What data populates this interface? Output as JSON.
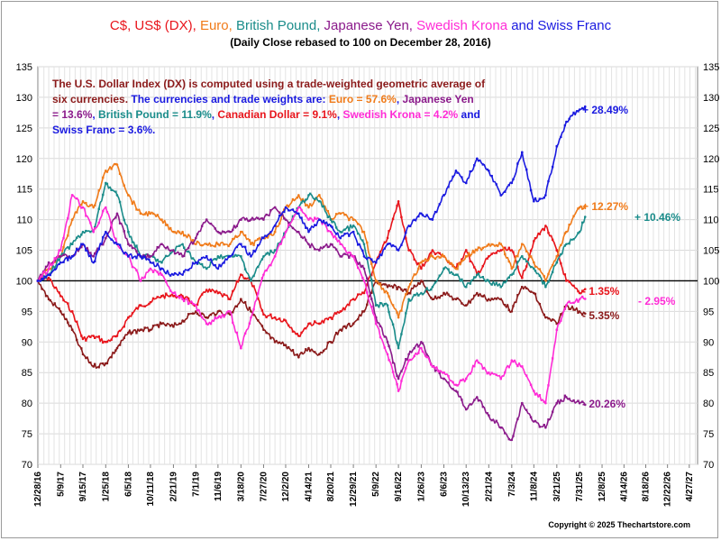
{
  "title": {
    "segments": [
      {
        "text": "C$",
        "color": "#e8141b"
      },
      {
        "text": ", ",
        "color": "#e8141b"
      },
      {
        "text": "US$ (DX)",
        "color": "#e8141b"
      },
      {
        "text": ", ",
        "color": "#e8141b"
      },
      {
        "text": "Euro",
        "color": "#f07b1a"
      },
      {
        "text": ", ",
        "color": "#f07b1a"
      },
      {
        "text": "British Pound",
        "color": "#1a8c8a"
      },
      {
        "text": ", ",
        "color": "#1a8c8a"
      },
      {
        "text": "Japanese Yen",
        "color": "#8b1a8b"
      },
      {
        "text": ", ",
        "color": "#8b1a8b"
      },
      {
        "text": "Swedish Krona",
        "color": "#ff2bd6"
      },
      {
        "text": " and ",
        "color": "#1a1ae0"
      },
      {
        "text": "Swiss Franc",
        "color": "#1a1ae0"
      }
    ],
    "subtitle": "(Daily Close rebased to 100 on December 28, 2016)"
  },
  "annotation": {
    "lines": [
      [
        {
          "text": "The U.S. Dollar Index (DX) is computed using a trade-weighted geometric average of",
          "color": "#8b1a1a"
        }
      ],
      [
        {
          "text": "six currencies.",
          "color": "#8b1a1a"
        },
        {
          "text": "  The currencies and  trade weights are: ",
          "color": "#1a1ae0"
        },
        {
          "text": "Euro = 57.6%",
          "color": "#f07b1a"
        },
        {
          "text": ", ",
          "color": "#1a1ae0"
        },
        {
          "text": "Japanese Yen",
          "color": "#8b1a8b"
        }
      ],
      [
        {
          "text": "= 13.6%",
          "color": "#8b1a8b"
        },
        {
          "text": ",  ",
          "color": "#1a1ae0"
        },
        {
          "text": "British Pound = 11.9%",
          "color": "#1a8c8a"
        },
        {
          "text": ", ",
          "color": "#1a1ae0"
        },
        {
          "text": "Canadian Dollar = 9.1%",
          "color": "#e8141b"
        },
        {
          "text": ", ",
          "color": "#1a1ae0"
        },
        {
          "text": "Swedish Krona = 4.2%",
          "color": "#ff2bd6"
        },
        {
          "text": " and",
          "color": "#1a1ae0"
        }
      ],
      [
        {
          "text": "Swiss Franc = 3.6%.",
          "color": "#1a1ae0"
        }
      ]
    ]
  },
  "copyright": "Copyright © 2025 Thechartstore.com",
  "chart_data": {
    "type": "line",
    "ylim": [
      70,
      135
    ],
    "y_ticks": [
      70,
      75,
      80,
      85,
      90,
      95,
      100,
      105,
      110,
      115,
      120,
      125,
      130,
      135
    ],
    "reference_line": 100,
    "grid": true,
    "x_range": [
      "2016-12-28",
      "2027-06-14"
    ],
    "x_tick_labels": [
      "12/28/16",
      "5/9/17",
      "9/15/17",
      "1/25/18",
      "6/5/18",
      "10/11/18",
      "2/21/19",
      "7/1/19",
      "11/6/19",
      "3/18/20",
      "7/27/20",
      "12/2/20",
      "4/14/21",
      "8/20/21",
      "12/29/21",
      "5/9/22",
      "9/16/22",
      "1/26/23",
      "6/6/23",
      "10/13/23",
      "2/21/24",
      "7/3/24",
      "11/8/24",
      "3/21/25",
      "7/31/25",
      "12/8/25",
      "4/14/26",
      "8/18/26",
      "12/22/26",
      "4/27/27"
    ],
    "series": [
      {
        "name": "US$ (DX)",
        "color": "#e8141b",
        "end_label": "- 1.35%",
        "dates": [
          "2016-12-28",
          "2017-03-01",
          "2017-05-09",
          "2017-07-15",
          "2017-09-15",
          "2017-11-15",
          "2018-01-25",
          "2018-04-01",
          "2018-06-05",
          "2018-08-15",
          "2018-10-11",
          "2018-12-15",
          "2019-02-21",
          "2019-04-15",
          "2019-07-01",
          "2019-09-01",
          "2019-11-06",
          "2020-01-15",
          "2020-03-18",
          "2020-05-15",
          "2020-07-27",
          "2020-10-01",
          "2020-12-02",
          "2021-02-15",
          "2021-04-14",
          "2021-06-15",
          "2021-08-20",
          "2021-10-15",
          "2021-12-29",
          "2022-03-01",
          "2022-05-09",
          "2022-07-15",
          "2022-09-16",
          "2022-11-15",
          "2023-01-26",
          "2023-04-01",
          "2023-06-06",
          "2023-08-15",
          "2023-10-13",
          "2023-12-15",
          "2024-02-21",
          "2024-05-01",
          "2024-07-03",
          "2024-09-01",
          "2024-11-08",
          "2025-01-15",
          "2025-03-21",
          "2025-05-15",
          "2025-07-31",
          "2025-09-01"
        ],
        "values": [
          100,
          100.5,
          97.5,
          95,
          90.5,
          91,
          90,
          91,
          94,
          96,
          96.5,
          97.5,
          97.5,
          97.5,
          96,
          98.5,
          98,
          97,
          101,
          100,
          94.5,
          94,
          93.5,
          91,
          93,
          93,
          94,
          95,
          97,
          98,
          103,
          107,
          113,
          105,
          102,
          105,
          104,
          102,
          105,
          101,
          104,
          105,
          105,
          100.5,
          106.5,
          109,
          105,
          100,
          98,
          98.65
        ]
      },
      {
        "name": "C$",
        "color": "#8b1a1a",
        "end_label": "- 5.35%",
        "dates": [
          "2016-12-28",
          "2017-03-01",
          "2017-05-09",
          "2017-07-15",
          "2017-09-15",
          "2017-11-15",
          "2018-01-25",
          "2018-04-01",
          "2018-06-05",
          "2018-08-15",
          "2018-10-11",
          "2018-12-15",
          "2019-02-21",
          "2019-04-15",
          "2019-07-01",
          "2019-09-01",
          "2019-11-06",
          "2020-01-15",
          "2020-03-18",
          "2020-05-15",
          "2020-07-27",
          "2020-10-01",
          "2020-12-02",
          "2021-02-15",
          "2021-04-14",
          "2021-06-15",
          "2021-08-20",
          "2021-10-15",
          "2021-12-29",
          "2022-03-01",
          "2022-05-09",
          "2022-07-15",
          "2022-09-16",
          "2022-11-15",
          "2023-01-26",
          "2023-04-01",
          "2023-06-06",
          "2023-08-15",
          "2023-10-13",
          "2023-12-15",
          "2024-02-21",
          "2024-05-01",
          "2024-07-03",
          "2024-09-01",
          "2024-11-08",
          "2025-01-15",
          "2025-03-21",
          "2025-05-15",
          "2025-07-31",
          "2025-09-01"
        ],
        "values": [
          100,
          97,
          95,
          92,
          88,
          86,
          86.5,
          89,
          91.5,
          92,
          92,
          93,
          92.5,
          93.5,
          95,
          94,
          95,
          94.5,
          97,
          95,
          92,
          90,
          89.5,
          87.5,
          89,
          88,
          90,
          92,
          93,
          95,
          100,
          99,
          99,
          98,
          100,
          97,
          98,
          97,
          96,
          98,
          97,
          97,
          95,
          99,
          98,
          94,
          93,
          96,
          95,
          94.65
        ]
      },
      {
        "name": "Euro",
        "color": "#f07b1a",
        "end_label": "+ 12.27%",
        "dates": [
          "2016-12-28",
          "2017-03-01",
          "2017-05-09",
          "2017-07-15",
          "2017-09-15",
          "2017-11-15",
          "2018-01-25",
          "2018-04-01",
          "2018-06-05",
          "2018-08-15",
          "2018-10-11",
          "2018-12-15",
          "2019-02-21",
          "2019-04-15",
          "2019-07-01",
          "2019-09-01",
          "2019-11-06",
          "2020-01-15",
          "2020-03-18",
          "2020-05-15",
          "2020-07-27",
          "2020-10-01",
          "2020-12-02",
          "2021-02-15",
          "2021-04-14",
          "2021-06-15",
          "2021-08-20",
          "2021-10-15",
          "2021-12-29",
          "2022-03-01",
          "2022-05-09",
          "2022-07-15",
          "2022-09-16",
          "2022-11-15",
          "2023-01-26",
          "2023-04-01",
          "2023-06-06",
          "2023-08-15",
          "2023-10-13",
          "2023-12-15",
          "2024-02-21",
          "2024-05-01",
          "2024-07-03",
          "2024-09-01",
          "2024-11-08",
          "2025-01-15",
          "2025-03-21",
          "2025-05-15",
          "2025-07-31",
          "2025-09-01"
        ],
        "values": [
          100,
          102,
          104,
          110,
          113,
          112,
          118,
          119,
          114,
          111,
          111,
          110,
          108,
          108,
          106,
          106,
          106,
          106,
          108,
          106,
          107,
          108,
          112,
          114,
          112,
          114,
          110,
          111,
          110,
          108,
          100,
          98,
          94,
          99,
          103,
          104,
          104,
          102,
          104,
          105,
          106,
          106,
          102,
          106,
          103,
          100,
          104,
          108,
          112,
          112.27
        ]
      },
      {
        "name": "British Pound",
        "color": "#1a8c8a",
        "end_label": "+ 10.46%",
        "dates": [
          "2016-12-28",
          "2017-03-01",
          "2017-05-09",
          "2017-07-15",
          "2017-09-15",
          "2017-11-15",
          "2018-01-25",
          "2018-04-01",
          "2018-06-05",
          "2018-08-15",
          "2018-10-11",
          "2018-12-15",
          "2019-02-21",
          "2019-04-15",
          "2019-07-01",
          "2019-09-01",
          "2019-11-06",
          "2020-01-15",
          "2020-03-18",
          "2020-05-15",
          "2020-07-27",
          "2020-10-01",
          "2020-12-02",
          "2021-02-15",
          "2021-04-14",
          "2021-06-15",
          "2021-08-20",
          "2021-10-15",
          "2021-12-29",
          "2022-03-01",
          "2022-05-09",
          "2022-07-15",
          "2022-09-16",
          "2022-11-15",
          "2023-01-26",
          "2023-04-01",
          "2023-06-06",
          "2023-08-15",
          "2023-10-13",
          "2023-12-15",
          "2024-02-21",
          "2024-05-01",
          "2024-07-03",
          "2024-09-01",
          "2024-11-08",
          "2025-01-15",
          "2025-03-21",
          "2025-05-15",
          "2025-07-31",
          "2025-09-01"
        ],
        "values": [
          100,
          101,
          104,
          106,
          108,
          108,
          116,
          114,
          108,
          104,
          104,
          103,
          105,
          106,
          103,
          102,
          104,
          104,
          104,
          100,
          104,
          105,
          108,
          112,
          114,
          113,
          110,
          108,
          109,
          106,
          96,
          96,
          89,
          97,
          98,
          99,
          102,
          101,
          99,
          101,
          100,
          99,
          101,
          104,
          102,
          99,
          103,
          106,
          108,
          110.46
        ]
      },
      {
        "name": "Japanese Yen",
        "color": "#8b1a8b",
        "end_label": "- 20.26%",
        "dates": [
          "2016-12-28",
          "2017-03-01",
          "2017-05-09",
          "2017-07-15",
          "2017-09-15",
          "2017-11-15",
          "2018-01-25",
          "2018-04-01",
          "2018-06-05",
          "2018-08-15",
          "2018-10-11",
          "2018-12-15",
          "2019-02-21",
          "2019-04-15",
          "2019-07-01",
          "2019-09-01",
          "2019-11-06",
          "2020-01-15",
          "2020-03-18",
          "2020-05-15",
          "2020-07-27",
          "2020-10-01",
          "2020-12-02",
          "2021-02-15",
          "2021-04-14",
          "2021-06-15",
          "2021-08-20",
          "2021-10-15",
          "2021-12-29",
          "2022-03-01",
          "2022-05-09",
          "2022-07-15",
          "2022-09-16",
          "2022-11-15",
          "2023-01-26",
          "2023-04-01",
          "2023-06-06",
          "2023-08-15",
          "2023-10-13",
          "2023-12-15",
          "2024-02-21",
          "2024-05-01",
          "2024-07-03",
          "2024-09-01",
          "2024-11-08",
          "2025-01-15",
          "2025-03-21",
          "2025-05-15",
          "2025-07-31",
          "2025-09-01"
        ],
        "values": [
          100,
          103,
          104,
          104,
          106,
          104,
          107,
          111,
          106,
          104,
          104,
          106,
          105,
          104,
          107,
          110,
          108,
          108,
          110,
          110,
          110,
          112,
          110,
          108,
          106,
          105,
          106,
          104,
          104,
          102,
          94,
          90,
          84,
          88,
          90,
          86,
          84,
          82,
          79,
          81,
          78,
          76,
          74,
          80,
          77,
          76,
          80,
          81,
          80,
          79.74
        ]
      },
      {
        "name": "Swedish Krona",
        "color": "#ff2bd6",
        "end_label": "- 2.95%",
        "dates": [
          "2016-12-28",
          "2017-03-01",
          "2017-05-09",
          "2017-07-15",
          "2017-09-15",
          "2017-11-15",
          "2018-01-25",
          "2018-04-01",
          "2018-06-05",
          "2018-08-15",
          "2018-10-11",
          "2018-12-15",
          "2019-02-21",
          "2019-04-15",
          "2019-07-01",
          "2019-09-01",
          "2019-11-06",
          "2020-01-15",
          "2020-03-18",
          "2020-05-15",
          "2020-07-27",
          "2020-10-01",
          "2020-12-02",
          "2021-02-15",
          "2021-04-14",
          "2021-06-15",
          "2021-08-20",
          "2021-10-15",
          "2021-12-29",
          "2022-03-01",
          "2022-05-09",
          "2022-07-15",
          "2022-09-16",
          "2022-11-15",
          "2023-01-26",
          "2023-04-01",
          "2023-06-06",
          "2023-08-15",
          "2023-10-13",
          "2023-12-15",
          "2024-02-21",
          "2024-05-01",
          "2024-07-03",
          "2024-09-01",
          "2024-11-08",
          "2025-01-15",
          "2025-03-21",
          "2025-05-15",
          "2025-07-31",
          "2025-09-01"
        ],
        "values": [
          100,
          102,
          105,
          114,
          112,
          108,
          112,
          106,
          104,
          100,
          102,
          101,
          98,
          97,
          96,
          93,
          94,
          95,
          89,
          94,
          101,
          104,
          108,
          112,
          110,
          110,
          108,
          106,
          104,
          100,
          93,
          88,
          82,
          87,
          89,
          86,
          85,
          83,
          84,
          87,
          85,
          84,
          87,
          86,
          82,
          80,
          92,
          96,
          97,
          97.05
        ]
      },
      {
        "name": "Swiss Franc",
        "color": "#1a1ae0",
        "end_label": "+ 28.49%",
        "dates": [
          "2016-12-28",
          "2017-03-01",
          "2017-05-09",
          "2017-07-15",
          "2017-09-15",
          "2017-11-15",
          "2018-01-25",
          "2018-04-01",
          "2018-06-05",
          "2018-08-15",
          "2018-10-11",
          "2018-12-15",
          "2019-02-21",
          "2019-04-15",
          "2019-07-01",
          "2019-09-01",
          "2019-11-06",
          "2020-01-15",
          "2020-03-18",
          "2020-05-15",
          "2020-07-27",
          "2020-10-01",
          "2020-12-02",
          "2021-02-15",
          "2021-04-14",
          "2021-06-15",
          "2021-08-20",
          "2021-10-15",
          "2021-12-29",
          "2022-03-01",
          "2022-05-09",
          "2022-07-15",
          "2022-09-16",
          "2022-11-15",
          "2023-01-26",
          "2023-04-01",
          "2023-06-06",
          "2023-08-15",
          "2023-10-13",
          "2023-12-15",
          "2024-02-21",
          "2024-05-01",
          "2024-07-03",
          "2024-09-01",
          "2024-11-08",
          "2025-01-15",
          "2025-03-21",
          "2025-05-15",
          "2025-07-31",
          "2025-09-01"
        ],
        "values": [
          100,
          101,
          103,
          104,
          106,
          103,
          108,
          106,
          104,
          104,
          103,
          102,
          101,
          101,
          103,
          104,
          102,
          104,
          106,
          104,
          107,
          109,
          112,
          111,
          108,
          110,
          109,
          107,
          108,
          104,
          103,
          106,
          105,
          109,
          111,
          110,
          114,
          118,
          116,
          120,
          118,
          114,
          116,
          121,
          113,
          114,
          122,
          126,
          128,
          128.49
        ]
      }
    ]
  }
}
